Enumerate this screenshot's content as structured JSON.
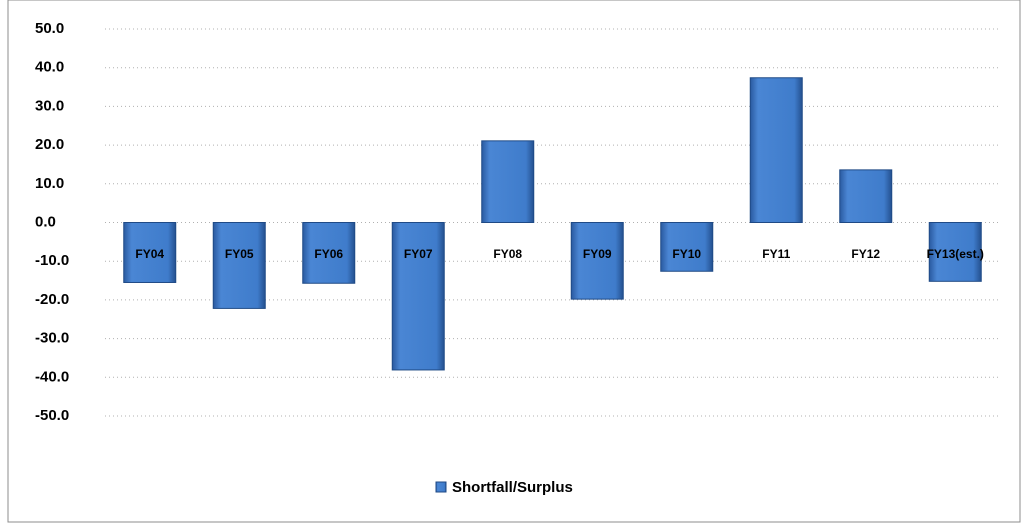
{
  "chart_data": {
    "type": "bar",
    "categories": [
      "FY04",
      "FY05",
      "FY06",
      "FY07",
      "FY08",
      "FY09",
      "FY10",
      "FY11",
      "FY12",
      "FY13(est.)"
    ],
    "series": [
      {
        "name": "Shortfall/Surplus",
        "color": "#3d75c2",
        "values": [
          -15.5,
          -22.2,
          -15.7,
          -38.1,
          21.1,
          -19.8,
          -12.6,
          37.4,
          13.6,
          -15.2
        ]
      }
    ],
    "ylim": [
      -50,
      50
    ],
    "yticks": [
      {
        "value": 50,
        "label": "50.0"
      },
      {
        "value": 40,
        "label": "40.0"
      },
      {
        "value": 30,
        "label": "30.0"
      },
      {
        "value": 20,
        "label": "20.0"
      },
      {
        "value": 10,
        "label": "10.0"
      },
      {
        "value": 0,
        "label": "0.0"
      },
      {
        "value": -10,
        "label": "-10.0"
      },
      {
        "value": -20,
        "label": "-20.0"
      },
      {
        "value": -30,
        "label": "-30.0"
      },
      {
        "value": -40,
        "label": "-40.0"
      },
      {
        "value": -50,
        "label": "-50.0"
      }
    ],
    "grid": true,
    "legend": "bottom"
  }
}
